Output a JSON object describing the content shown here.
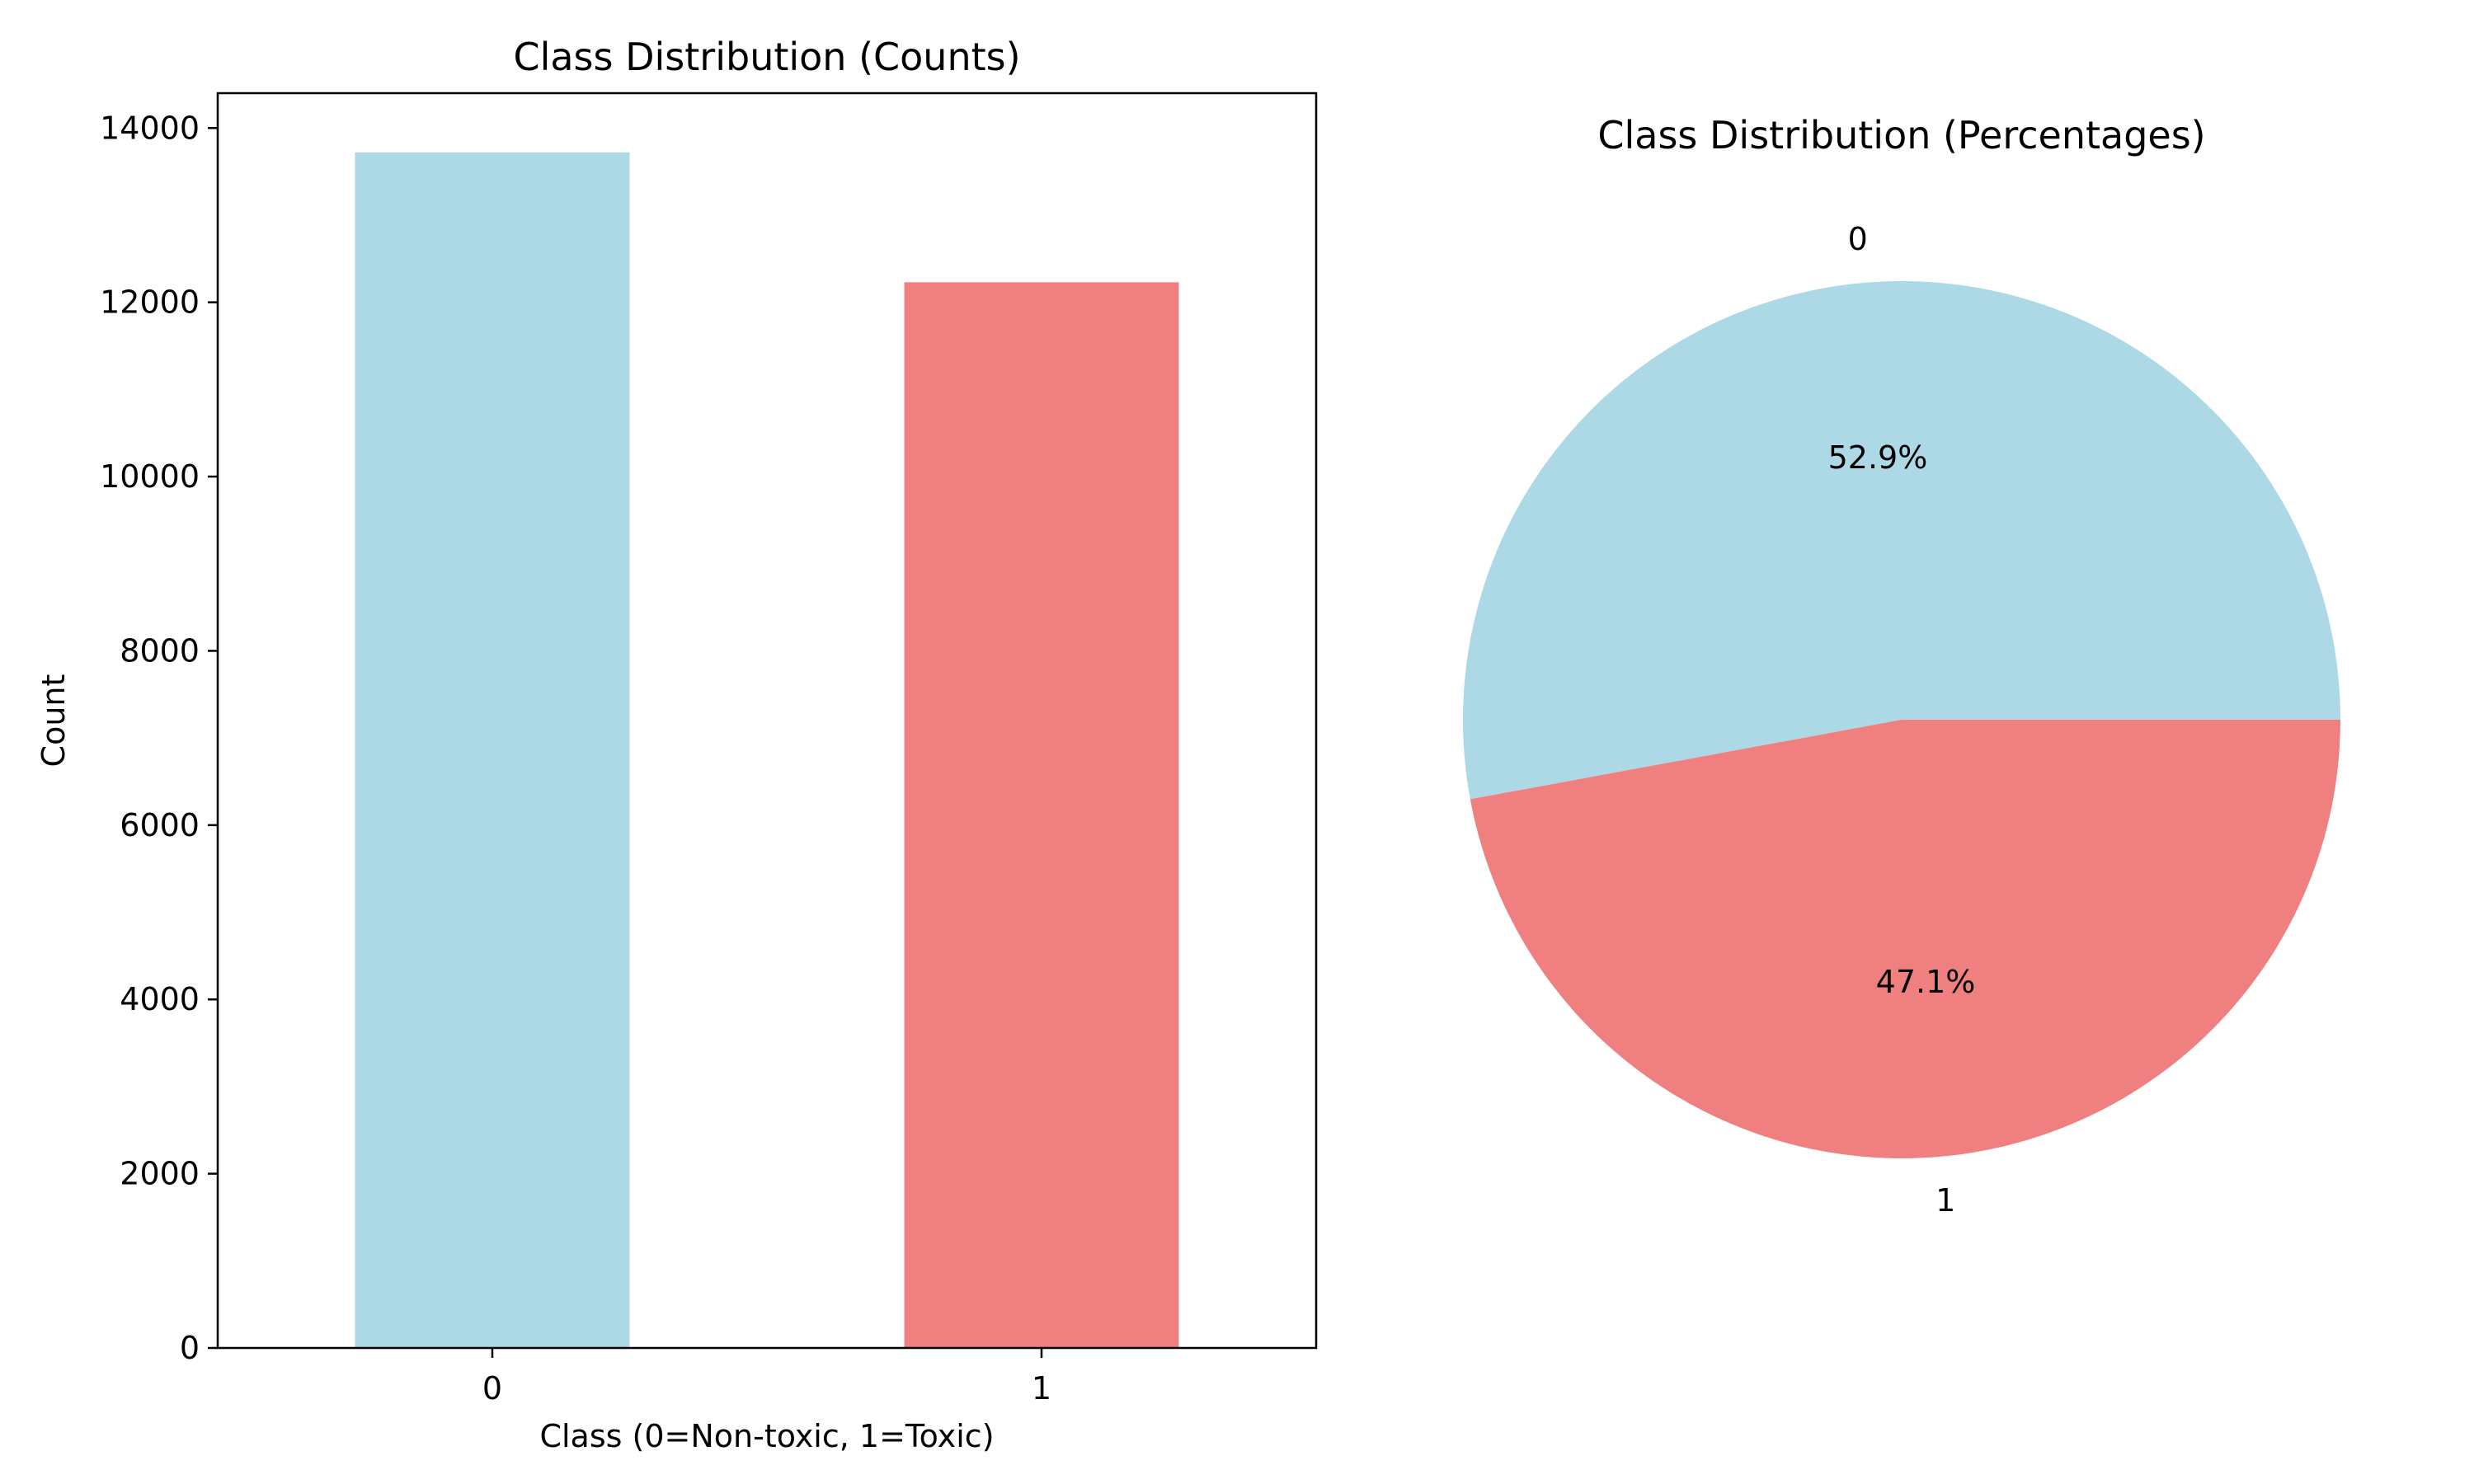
{
  "chart_data": [
    {
      "type": "bar",
      "title": "Class Distribution (Counts)",
      "xlabel": "Class (0=Non-toxic, 1=Toxic)",
      "ylabel": "Count",
      "categories": [
        "0",
        "1"
      ],
      "values": [
        13720,
        12230
      ],
      "colors": [
        "#add8e6",
        "#f08080"
      ],
      "ylim": [
        0,
        14400
      ],
      "yticks": [
        0,
        2000,
        4000,
        6000,
        8000,
        10000,
        12000,
        14000
      ],
      "grid": false
    },
    {
      "type": "pie",
      "title": "Class Distribution (Percentages)",
      "labels": [
        "0",
        "1"
      ],
      "values": [
        52.9,
        47.1
      ],
      "pct_labels": [
        "52.9%",
        "47.1%"
      ],
      "colors": [
        "#add8e6",
        "#f08080"
      ]
    }
  ]
}
